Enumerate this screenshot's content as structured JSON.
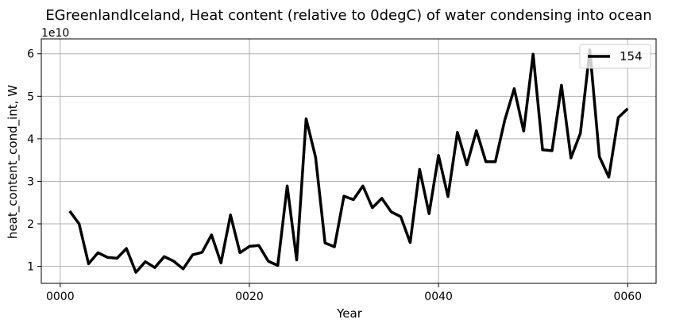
{
  "chart_data": {
    "type": "line",
    "title": "EGreenlandIceland, Heat content (relative to 0degC) of water condensing into ocean",
    "xlabel": "Year",
    "ylabel": "heat_content_cond_int, W",
    "y_multiplier_label": "1e10",
    "xlim": [
      -2,
      63
    ],
    "ylim": [
      0.6,
      6.35
    ],
    "x_ticks": [
      0,
      20,
      40,
      60
    ],
    "x_tick_labels": [
      "0000",
      "0020",
      "0040",
      "0060"
    ],
    "y_ticks": [
      1,
      2,
      3,
      4,
      5,
      6
    ],
    "y_tick_labels": [
      "1",
      "2",
      "3",
      "4",
      "5",
      "6"
    ],
    "grid": true,
    "legend_position": "top-right",
    "line_color": "#000000",
    "series": [
      {
        "name": "154",
        "x": [
          1,
          2,
          3,
          4,
          5,
          6,
          7,
          8,
          9,
          10,
          11,
          12,
          13,
          14,
          15,
          16,
          17,
          18,
          19,
          20,
          21,
          22,
          23,
          24,
          25,
          26,
          27,
          28,
          29,
          30,
          31,
          32,
          33,
          34,
          35,
          36,
          37,
          38,
          39,
          40,
          41,
          42,
          43,
          44,
          45,
          46,
          47,
          48,
          49,
          50,
          51,
          52,
          53,
          54,
          55,
          56,
          57,
          58,
          59,
          60
        ],
        "values": [
          2.3,
          2.0,
          1.06,
          1.32,
          1.21,
          1.19,
          1.42,
          0.86,
          1.11,
          0.97,
          1.23,
          1.12,
          0.94,
          1.27,
          1.33,
          1.74,
          1.08,
          2.21,
          1.32,
          1.47,
          1.49,
          1.12,
          1.02,
          2.89,
          1.15,
          4.47,
          3.57,
          1.55,
          1.46,
          2.65,
          2.57,
          2.89,
          2.38,
          2.6,
          2.28,
          2.17,
          1.56,
          3.28,
          2.24,
          3.61,
          2.64,
          4.15,
          3.39,
          4.19,
          3.46,
          3.46,
          4.44,
          5.18,
          4.18,
          5.99,
          3.74,
          3.72,
          5.26,
          3.55,
          4.13,
          6.09,
          3.58,
          3.1,
          4.5,
          4.71
        ]
      }
    ]
  }
}
